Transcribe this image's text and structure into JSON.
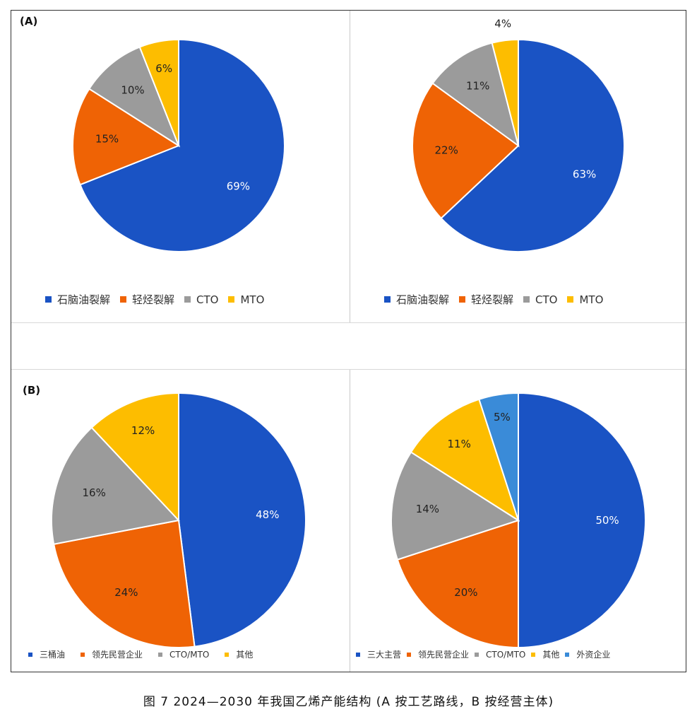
{
  "colors": {
    "blue": "#1a53c4",
    "orange": "#ef6305",
    "gray": "#9b9b9b",
    "yellow": "#fdbd00",
    "lightblue": "#3a8bd8"
  },
  "panel_labels": {
    "A": "(A)",
    "B": "(B)"
  },
  "chart_data": [
    {
      "type": "pie",
      "panel": "A",
      "labels": [
        "石脑油裂解",
        "轻烃裂解",
        "CTO",
        "MTO"
      ],
      "values": [
        69,
        15,
        10,
        6
      ],
      "value_labels": [
        "69%",
        "15%",
        "10%",
        "6%"
      ],
      "legend": "bottom"
    },
    {
      "type": "pie",
      "panel": "A",
      "labels": [
        "石脑油裂解",
        "轻烃裂解",
        "CTO",
        "MTO"
      ],
      "values": [
        63,
        22,
        11,
        4
      ],
      "value_labels": [
        "63%",
        "22%",
        "11%",
        "4%"
      ],
      "legend": "bottom"
    },
    {
      "type": "pie",
      "panel": "B",
      "labels": [
        "三桶油",
        "领先民营企业",
        "CTO/MTO",
        "其他"
      ],
      "values": [
        48,
        24,
        16,
        12
      ],
      "value_labels": [
        "48%",
        "24%",
        "16%",
        "12%"
      ],
      "legend": "bottom"
    },
    {
      "type": "pie",
      "panel": "B",
      "labels": [
        "三大主营",
        "领先民营企业",
        "CTO/MTO",
        "其他",
        "外资企业"
      ],
      "values": [
        50,
        20,
        14,
        11,
        5
      ],
      "value_labels": [
        "50%",
        "20%",
        "14%",
        "11%",
        "5%"
      ],
      "legend": "bottom"
    }
  ],
  "caption": "图 7 2024—2030 年我国乙烯产能结构 (A 按工艺路线，B 按经营主体)"
}
